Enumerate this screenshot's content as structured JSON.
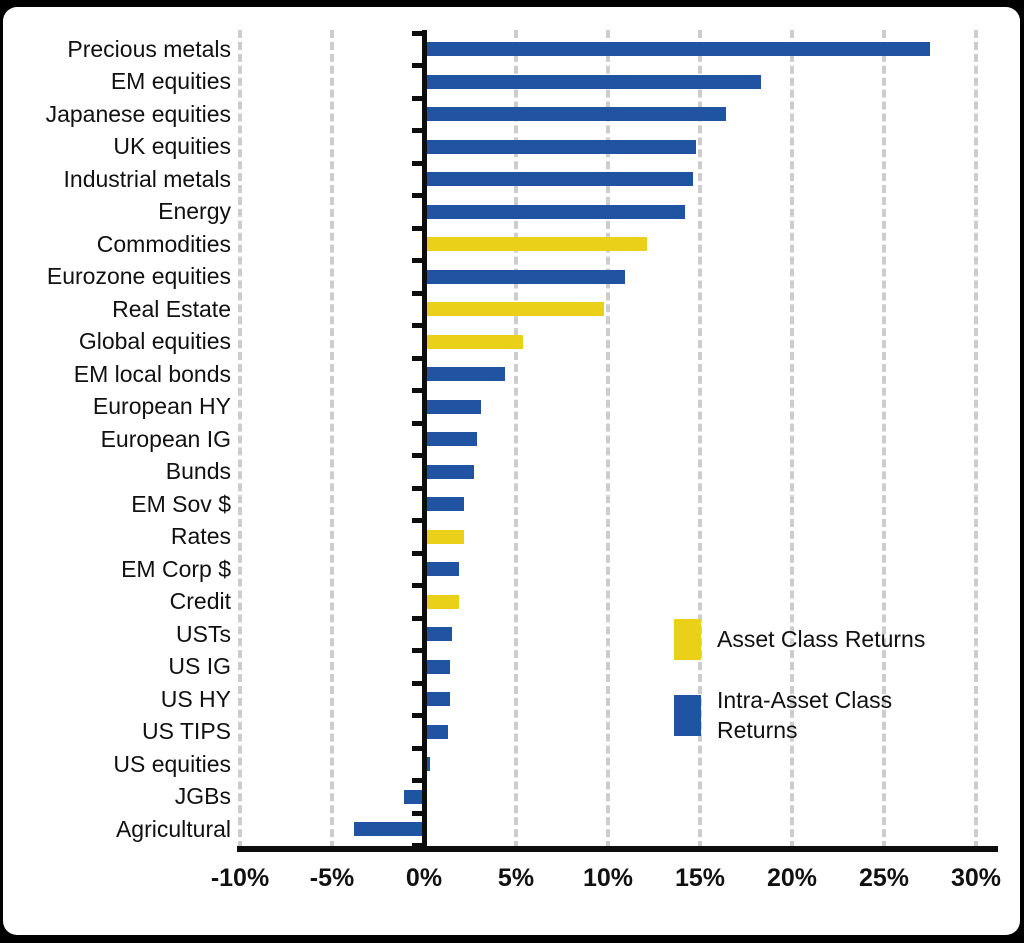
{
  "chart_data": {
    "type": "bar",
    "orientation": "horizontal",
    "title": "",
    "xlabel": "",
    "ylabel": "",
    "unit": "%",
    "xlim": [
      -10,
      30
    ],
    "x_ticks": [
      -10,
      -5,
      0,
      5,
      10,
      15,
      20,
      25,
      30
    ],
    "x_tick_labels": [
      "-10%",
      "-5%",
      "0%",
      "5%",
      "10%",
      "15%",
      "20%",
      "25%",
      "30%"
    ],
    "grid": "dashed-vertical",
    "legend_position": "inside-lower-right",
    "colors": {
      "asset_class": "#EBD01A",
      "intra_asset_class": "#2153A3",
      "gridline": "#cdcdcd",
      "axis": "#0d0d0d",
      "text": "#111111"
    },
    "legend": {
      "items": [
        {
          "label": "Asset Class Returns",
          "series": "asset_class",
          "color": "#EBD01A"
        },
        {
          "label": "Intra-Asset Class Returns",
          "series": "intra_asset_class",
          "color": "#2153A3"
        }
      ]
    },
    "items": [
      {
        "label": "Precious metals",
        "value": 27.5,
        "series": "intra_asset_class"
      },
      {
        "label": "EM equities",
        "value": 18.3,
        "series": "intra_asset_class"
      },
      {
        "label": "Japanese equities",
        "value": 16.4,
        "series": "intra_asset_class"
      },
      {
        "label": "UK equities",
        "value": 14.8,
        "series": "intra_asset_class"
      },
      {
        "label": "Industrial metals",
        "value": 14.6,
        "series": "intra_asset_class"
      },
      {
        "label": "Energy",
        "value": 14.2,
        "series": "intra_asset_class"
      },
      {
        "label": "Commodities",
        "value": 12.1,
        "series": "asset_class"
      },
      {
        "label": "Eurozone equities",
        "value": 10.9,
        "series": "intra_asset_class"
      },
      {
        "label": "Real Estate",
        "value": 9.8,
        "series": "asset_class"
      },
      {
        "label": "Global equities",
        "value": 5.4,
        "series": "asset_class"
      },
      {
        "label": "EM local bonds",
        "value": 4.4,
        "series": "intra_asset_class"
      },
      {
        "label": "European HY",
        "value": 3.1,
        "series": "intra_asset_class"
      },
      {
        "label": "European IG",
        "value": 2.9,
        "series": "intra_asset_class"
      },
      {
        "label": "Bunds",
        "value": 2.7,
        "series": "intra_asset_class"
      },
      {
        "label": "EM Sov $",
        "value": 2.2,
        "series": "intra_asset_class"
      },
      {
        "label": "Rates",
        "value": 2.2,
        "series": "asset_class"
      },
      {
        "label": "EM Corp $",
        "value": 1.9,
        "series": "intra_asset_class"
      },
      {
        "label": "Credit",
        "value": 1.9,
        "series": "asset_class"
      },
      {
        "label": "USTs",
        "value": 1.5,
        "series": "intra_asset_class"
      },
      {
        "label": "US IG",
        "value": 1.4,
        "series": "intra_asset_class"
      },
      {
        "label": "US HY",
        "value": 1.4,
        "series": "intra_asset_class"
      },
      {
        "label": "US TIPS",
        "value": 1.3,
        "series": "intra_asset_class"
      },
      {
        "label": "US equities",
        "value": 0.3,
        "series": "intra_asset_class"
      },
      {
        "label": "JGBs",
        "value": -1.1,
        "series": "intra_asset_class"
      },
      {
        "label": "Agricultural",
        "value": -3.8,
        "series": "intra_asset_class"
      }
    ]
  }
}
